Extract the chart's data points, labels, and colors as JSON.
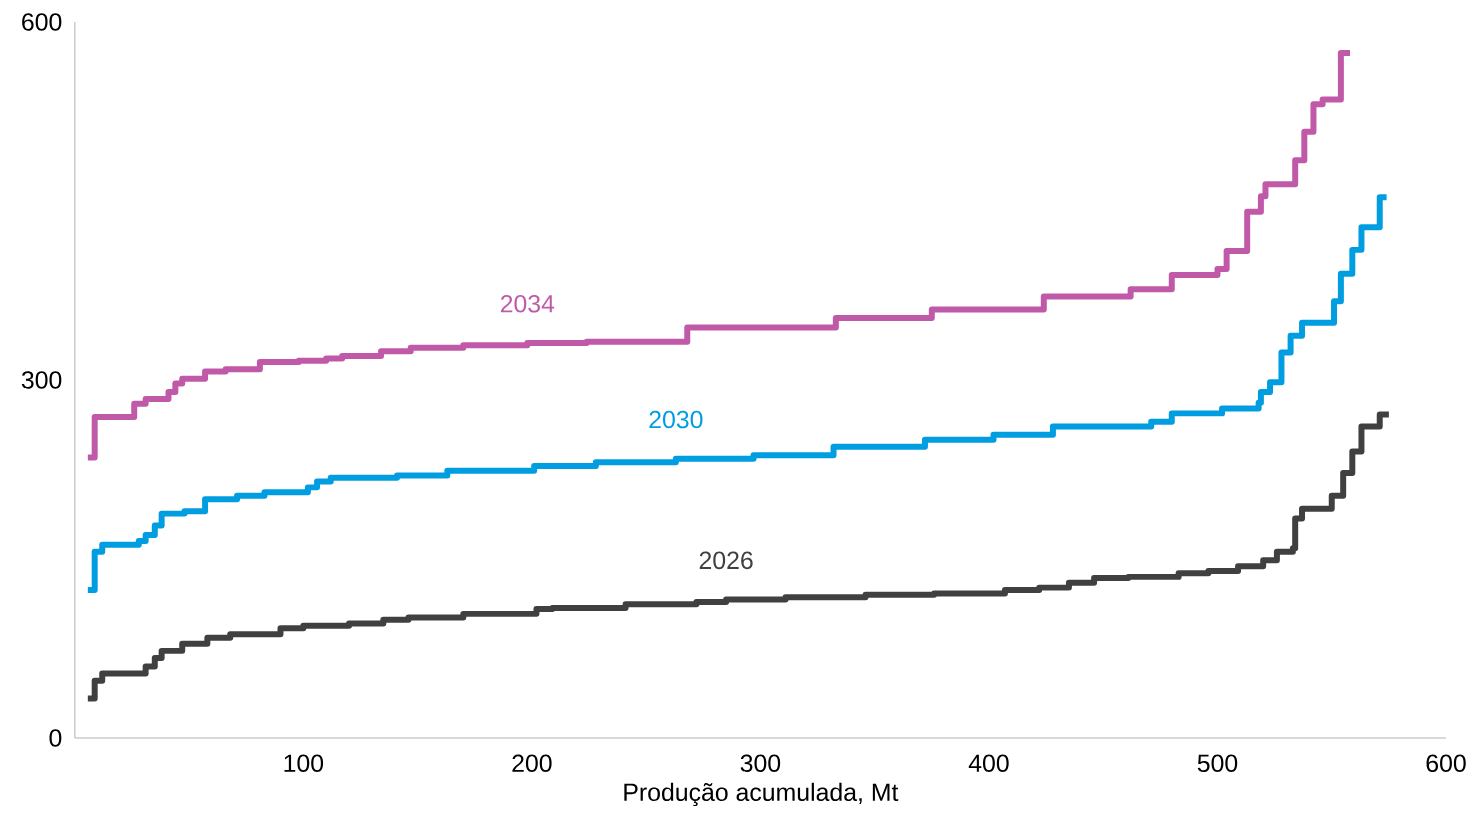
{
  "chart_data": {
    "type": "step",
    "xlabel": "Produção acumulada, Mt",
    "xlim": [
      0,
      600
    ],
    "ylim": [
      0,
      600
    ],
    "xticks": [
      100,
      200,
      300,
      400,
      500,
      600
    ],
    "yticks": [
      0,
      300,
      600
    ],
    "marker": "none",
    "line_style": "solid",
    "series": [
      {
        "name": "2026",
        "color": "#404040",
        "x": [
          5.7,
          8.7,
          12,
          31,
          35,
          38,
          47,
          58,
          68,
          90,
          100,
          120,
          135,
          146,
          170,
          202,
          209,
          241,
          272,
          285,
          311,
          346,
          376,
          407,
          422,
          435,
          446,
          461,
          483,
          496,
          509,
          520,
          526,
          533,
          534,
          537,
          550,
          555,
          559,
          563,
          571,
          575
        ],
        "values": [
          33,
          48,
          54,
          60,
          67,
          73,
          79,
          84,
          87,
          92,
          94,
          96,
          99,
          101,
          104,
          108,
          109,
          112,
          114,
          116,
          118,
          120,
          121,
          124,
          126,
          130,
          134,
          135,
          138,
          140,
          144,
          149,
          156,
          159,
          184,
          192,
          203,
          222,
          240,
          261,
          271,
          271
        ]
      },
      {
        "name": "2030",
        "color": "#009ee0",
        "x": [
          5.7,
          8.7,
          12,
          28,
          31,
          35,
          38,
          48,
          57,
          71,
          83,
          102,
          106,
          112,
          141,
          163,
          201,
          228,
          263,
          297,
          332,
          372,
          402,
          428,
          471,
          480,
          502,
          518,
          519,
          523,
          528,
          532,
          537,
          551,
          554,
          559,
          563,
          571,
          574
        ],
        "values": [
          124,
          156,
          162,
          165,
          170,
          178,
          188,
          190,
          200,
          203,
          206,
          210,
          215,
          218,
          220,
          224,
          228,
          231,
          234,
          237,
          244,
          250,
          254,
          261,
          265,
          272,
          276,
          281,
          290,
          298,
          323,
          337,
          348,
          366,
          389,
          409,
          428,
          453,
          453
        ]
      },
      {
        "name": "2034",
        "color": "#c05aa8",
        "x": [
          5.7,
          8.7,
          26,
          31,
          41,
          44,
          47,
          57,
          66,
          81,
          98,
          110,
          117,
          134,
          147,
          170,
          198,
          224,
          268,
          333,
          375,
          424,
          462,
          480,
          500,
          504,
          513,
          519,
          521,
          534,
          538,
          542,
          546,
          554,
          558
        ],
        "values": [
          235,
          269,
          280,
          284,
          290,
          297,
          301,
          307,
          309,
          315,
          316,
          318,
          320,
          324,
          327,
          329,
          331,
          332,
          344,
          352,
          359,
          370,
          376,
          388,
          393,
          408,
          441,
          454,
          464,
          484,
          508,
          531,
          535,
          574,
          574
        ]
      }
    ]
  }
}
